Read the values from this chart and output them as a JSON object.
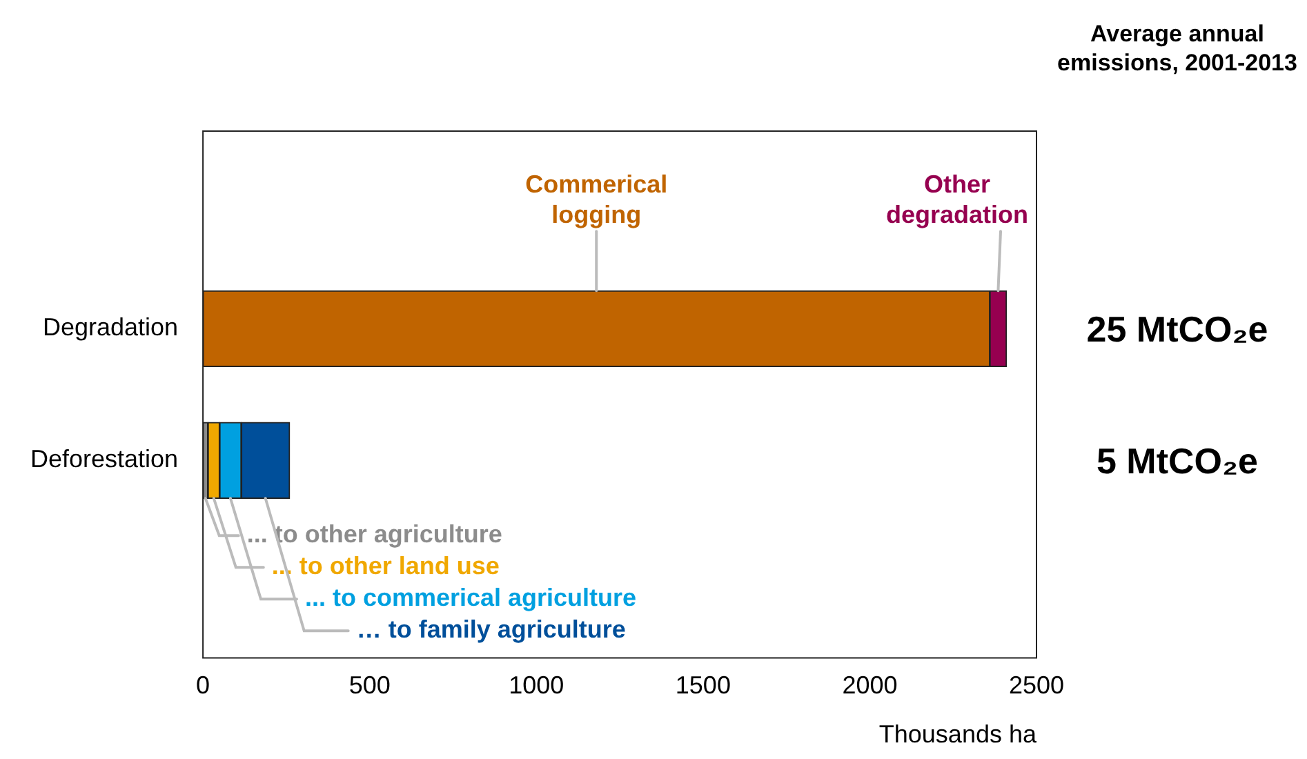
{
  "chart_data": {
    "type": "bar",
    "orientation": "horizontal",
    "stacked": true,
    "xlabel": "Thousands ha",
    "categories": [
      "Degradation",
      "Deforestation"
    ],
    "series": [
      {
        "name": "Commerical logging",
        "color": "#c06400",
        "values": [
          2360,
          null
        ]
      },
      {
        "name": "Other degradation",
        "color": "#960050",
        "values": [
          50,
          null
        ]
      },
      {
        "name": "... to other agriculture",
        "color": "#8c8c8c",
        "values": [
          null,
          15
        ]
      },
      {
        "name": "... to other land use",
        "color": "#f0a800",
        "values": [
          null,
          35
        ]
      },
      {
        "name": "... to commerical agriculture",
        "color": "#00a0e0",
        "values": [
          null,
          65
        ]
      },
      {
        "name": "… to family agriculture",
        "color": "#004f9a",
        "values": [
          null,
          145
        ]
      }
    ],
    "xlim": [
      0,
      2500
    ],
    "xticks": [
      0,
      500,
      1000,
      1500,
      2000,
      2500
    ],
    "grid": false,
    "legend": false,
    "annotations": [
      "Average annual emissions, 2001-2013",
      "25 MtCO₂e",
      "5 MtCO₂e"
    ]
  }
}
